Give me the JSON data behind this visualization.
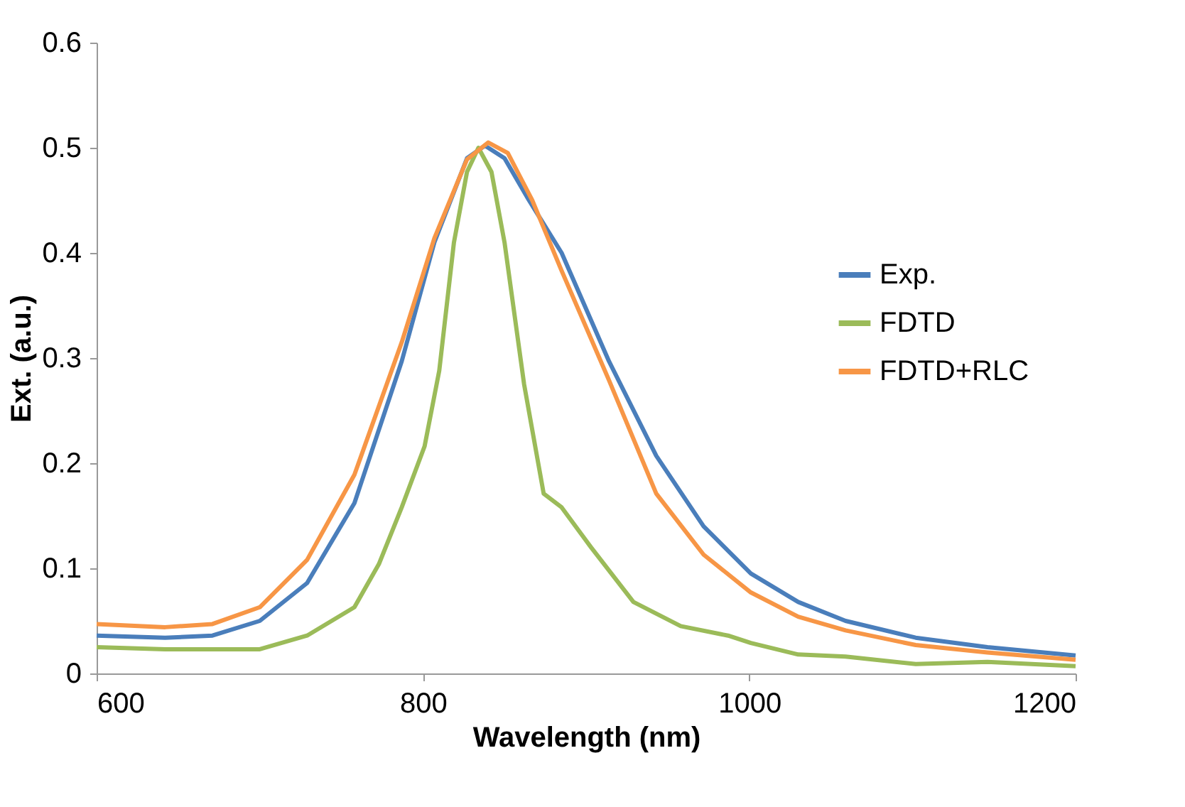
{
  "chart_data": {
    "type": "line",
    "xlabel": "Wavelength (nm)",
    "ylabel": "Ext. (a.u.)",
    "xlim": [
      600,
      1200
    ],
    "xticks": [
      600,
      800,
      1000,
      1200
    ],
    "ylim": [
      0,
      0.6
    ],
    "yticks": [
      0,
      0.1,
      0.2,
      0.3,
      0.4,
      0.5,
      0.6
    ],
    "grid": false,
    "legend": "right",
    "marker": "none",
    "line_style": "solid",
    "series": [
      {
        "name": "Exp.",
        "color": "#4a7ebb",
        "x": [
          600,
          642,
          671,
          700,
          729,
          758,
          787,
          807,
          827,
          838,
          850,
          865,
          885,
          914,
          943,
          972,
          1001,
          1030,
          1059,
          1102,
          1146,
          1200
        ],
        "values": [
          0.036,
          0.034,
          0.036,
          0.05,
          0.086,
          0.162,
          0.297,
          0.41,
          0.49,
          0.502,
          0.49,
          0.45,
          0.4,
          0.297,
          0.207,
          0.14,
          0.095,
          0.068,
          0.05,
          0.034,
          0.025,
          0.017
        ]
      },
      {
        "name": "FDTD",
        "color": "#9bbb59",
        "x": [
          600,
          642,
          671,
          700,
          729,
          758,
          773,
          787,
          801,
          810,
          819,
          827,
          834,
          842,
          850,
          862,
          874,
          885,
          903,
          929,
          958,
          987,
          1001,
          1030,
          1059,
          1102,
          1146,
          1200
        ],
        "values": [
          0.025,
          0.023,
          0.023,
          0.023,
          0.036,
          0.063,
          0.104,
          0.158,
          0.216,
          0.288,
          0.41,
          0.477,
          0.5,
          0.477,
          0.41,
          0.275,
          0.171,
          0.158,
          0.12,
          0.068,
          0.045,
          0.036,
          0.029,
          0.018,
          0.016,
          0.009,
          0.011,
          0.007
        ]
      },
      {
        "name": "FDTD+RLC",
        "color": "#f79646",
        "x": [
          600,
          642,
          671,
          700,
          729,
          758,
          787,
          807,
          827,
          840,
          852,
          867,
          885,
          914,
          943,
          972,
          1001,
          1030,
          1059,
          1102,
          1146,
          1200
        ],
        "values": [
          0.047,
          0.044,
          0.047,
          0.063,
          0.108,
          0.189,
          0.315,
          0.414,
          0.489,
          0.505,
          0.495,
          0.45,
          0.383,
          0.279,
          0.171,
          0.113,
          0.077,
          0.054,
          0.041,
          0.027,
          0.02,
          0.013
        ]
      }
    ]
  }
}
